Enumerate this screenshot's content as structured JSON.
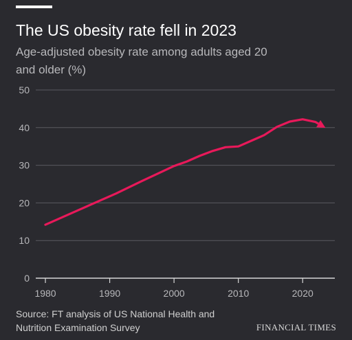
{
  "header": {
    "title": "The US obesity rate fell in 2023",
    "subtitle": "Age-adjusted obesity rate among adults aged 20 and older (%)"
  },
  "footer": {
    "source": "Source: FT analysis of US National Health and Nutrition Examination Survey",
    "brand": "FINANCIAL TIMES"
  },
  "colors": {
    "background": "#2a2a2f",
    "line": "#e8195a",
    "grid": "#5a5a60",
    "axis": "#d8d8d8",
    "tick_text": "#b8b8bb"
  },
  "chart_data": {
    "type": "line",
    "title": "The US obesity rate fell in 2023",
    "subtitle": "Age-adjusted obesity rate among adults aged 20 and older (%)",
    "xlabel": "",
    "ylabel": "",
    "xlim": [
      1978.5,
      2025
    ],
    "ylim": [
      0,
      50
    ],
    "x_ticks": [
      1980,
      1990,
      2000,
      2010,
      2020
    ],
    "y_ticks": [
      0,
      10,
      20,
      30,
      40,
      50
    ],
    "grid": "horizontal",
    "legend": "none",
    "end_marker": "arrow",
    "series": [
      {
        "x": [
          1980,
          1985,
          1991,
          1995,
          2000,
          2002,
          2004,
          2006,
          2008,
          2010,
          2012,
          2014,
          2016,
          2018,
          2020,
          2022,
          2023
        ],
        "y": [
          14.2,
          18,
          22.5,
          25.8,
          29.8,
          31,
          32.5,
          33.8,
          34.8,
          35,
          36.5,
          38,
          40.2,
          41.6,
          42.2,
          41.5,
          40.5
        ]
      }
    ]
  }
}
